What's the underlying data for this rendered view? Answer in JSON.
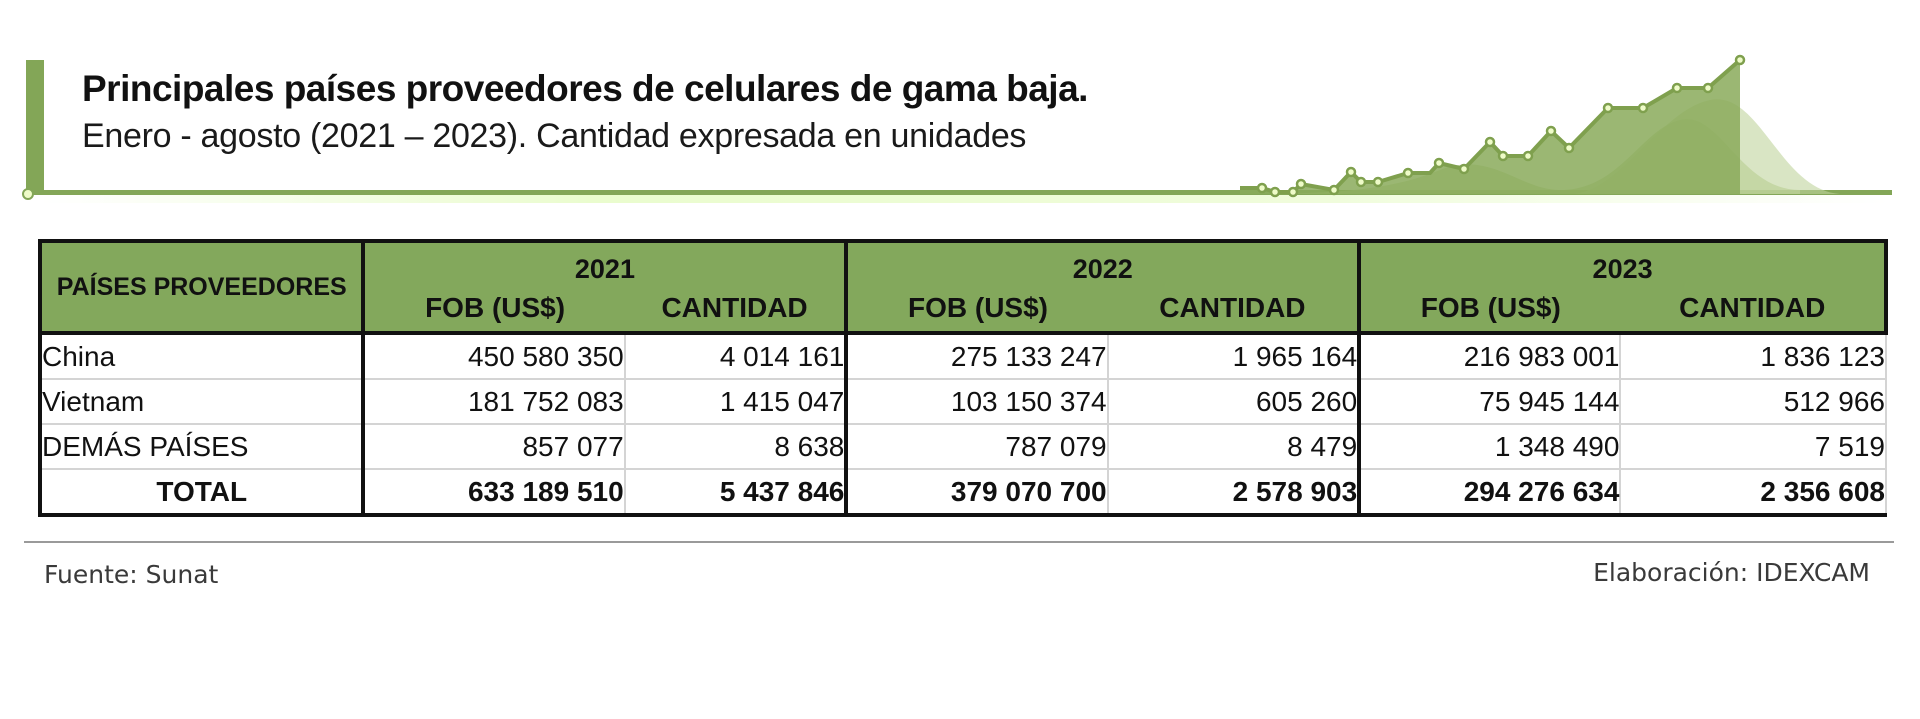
{
  "header": {
    "title": "Principales países proveedores de celulares de gama baja.",
    "subtitle": "Enero - agosto (2021 – 2023). Cantidad expresada en unidades",
    "accent_color": "#83a657",
    "decoration_icon": "rising-line-chart-icon"
  },
  "table": {
    "country_header": "PAÍSES PROVEEDORES",
    "years": [
      {
        "year": "2021",
        "fob_label": "FOB (US$)",
        "qty_label": "CANTIDAD"
      },
      {
        "year": "2022",
        "fob_label": "FOB (US$)",
        "qty_label": "CANTIDAD"
      },
      {
        "year": "2023",
        "fob_label": "FOB (US$)",
        "qty_label": "CANTIDAD"
      }
    ],
    "rows": [
      {
        "country": "China",
        "values": [
          "450 580 350",
          "4 014 161",
          "275 133 247",
          "1 965 164",
          "216 983 001",
          "1 836 123"
        ]
      },
      {
        "country": "Vietnam",
        "values": [
          "181 752 083",
          "1 415 047",
          "103 150 374",
          "605 260",
          "75 945 144",
          "512 966"
        ]
      },
      {
        "country": "DEMÁS PAÍSES",
        "values": [
          "857 077",
          "8 638",
          "787 079",
          "8 479",
          "1 348 490",
          "7 519"
        ]
      }
    ],
    "total": {
      "country": "TOTAL",
      "values": [
        "633 189 510",
        "5 437 846",
        "379 070 700",
        "2 578 903",
        "294 276 634",
        "2 356 608"
      ]
    },
    "header_color": "#83a85c"
  },
  "footer": {
    "source": "Fuente: Sunat",
    "credit": "Elaboración: IDEXCAM"
  }
}
